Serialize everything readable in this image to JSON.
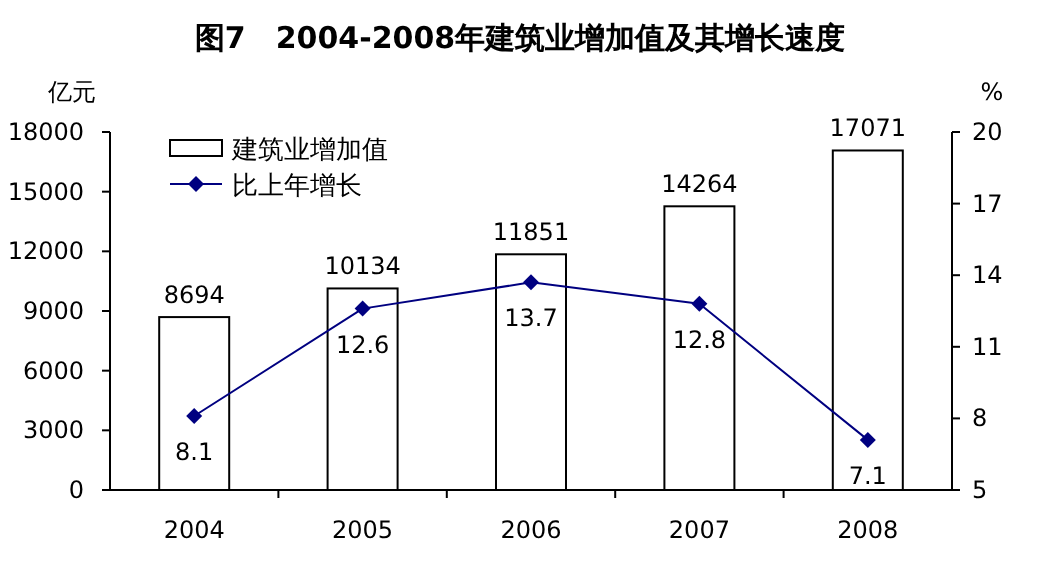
{
  "chart_data": {
    "type": "bar",
    "title": "图7　2004-2008年建筑业增加值及其增长速度",
    "ylabel": "亿元",
    "y2label": "%",
    "categories": [
      "2004",
      "2005",
      "2006",
      "2007",
      "2008"
    ],
    "series": [
      {
        "name": "建筑业增加值",
        "color": "#ffffff",
        "values": [
          8694,
          10134,
          11851,
          14264,
          17071
        ]
      },
      {
        "name": "比上年增长",
        "type": "line",
        "axis": "y2",
        "color": "#000080",
        "marker": "diamond",
        "values": [
          8.1,
          12.6,
          13.7,
          12.8,
          7.1
        ]
      }
    ],
    "ylim": [
      0,
      18000
    ],
    "yticks": [
      0,
      3000,
      6000,
      9000,
      12000,
      15000,
      18000
    ],
    "y2lim": [
      5,
      20
    ],
    "y2ticks": [
      5,
      8,
      11,
      14,
      17,
      20
    ],
    "data_labels": true,
    "legend": "top left"
  }
}
